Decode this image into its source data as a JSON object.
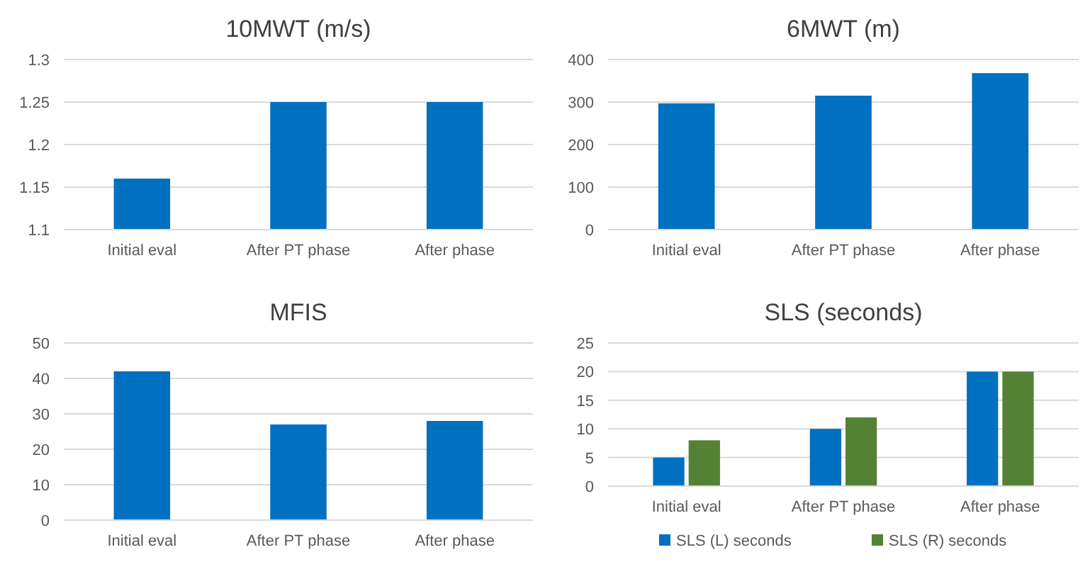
{
  "chart_data": [
    {
      "type": "bar",
      "title": "10MWT (m/s)",
      "categories": [
        "Initial eval",
        "After PT phase",
        "After phase"
      ],
      "values": [
        1.16,
        1.25,
        1.25
      ],
      "color": "#0070c0",
      "ylim": [
        1.1,
        1.3
      ],
      "yticks": [
        1.1,
        1.15,
        1.2,
        1.25,
        1.3
      ],
      "grid": "y"
    },
    {
      "type": "bar",
      "title": "6MWT (m)",
      "categories": [
        "Initial eval",
        "After PT phase",
        "After phase"
      ],
      "values": [
        297,
        315,
        368
      ],
      "color": "#0070c0",
      "ylim": [
        0,
        400
      ],
      "yticks": [
        0,
        100,
        200,
        300,
        400
      ],
      "grid": "y"
    },
    {
      "type": "bar",
      "title": "MFIS",
      "categories": [
        "Initial eval",
        "After PT phase",
        "After phase"
      ],
      "values": [
        42,
        27,
        28
      ],
      "color": "#0070c0",
      "ylim": [
        0,
        50
      ],
      "yticks": [
        0,
        10,
        20,
        30,
        40,
        50
      ],
      "grid": "y"
    },
    {
      "type": "bar",
      "title": "SLS (seconds)",
      "categories": [
        "Initial eval",
        "After PT phase",
        "After phase"
      ],
      "series": [
        {
          "name": "SLS (L) seconds",
          "color": "#0070c0",
          "values": [
            5,
            10,
            20
          ]
        },
        {
          "name": "SLS (R) seconds",
          "color": "#548235",
          "values": [
            8,
            12,
            20
          ]
        }
      ],
      "ylim": [
        0,
        25
      ],
      "yticks": [
        0,
        5,
        10,
        15,
        20,
        25
      ],
      "grid": "y",
      "legend": "bottom"
    }
  ]
}
